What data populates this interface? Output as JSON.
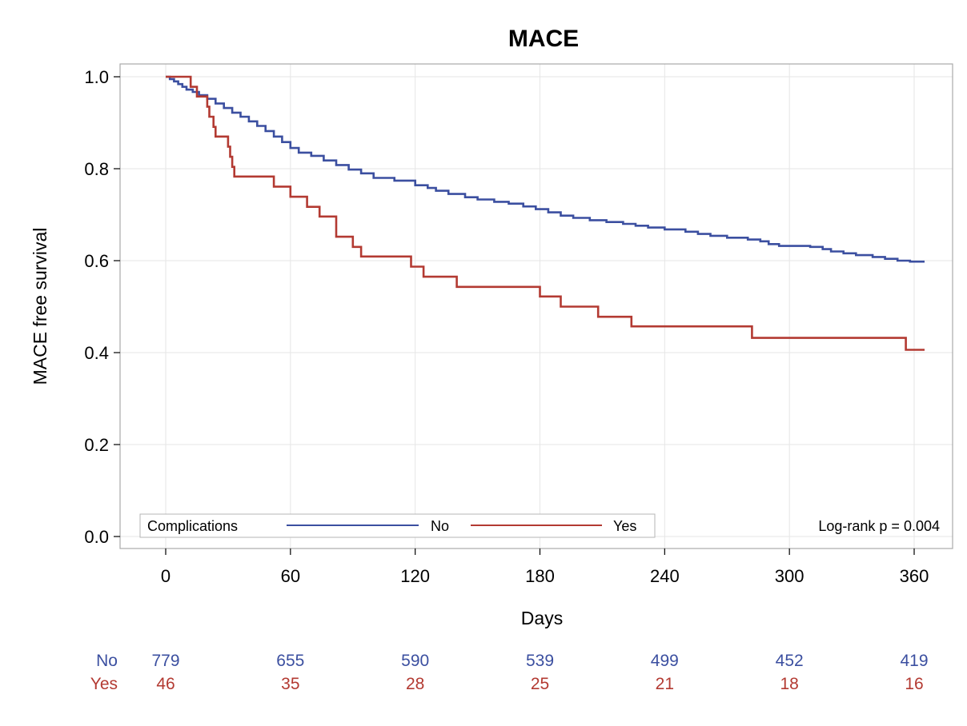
{
  "chart_data": {
    "type": "line",
    "subtype": "kaplan-meier",
    "title": "MACE",
    "xlabel": "Days",
    "ylabel": "MACE free survival",
    "xlim": [
      0,
      365
    ],
    "ylim": [
      0,
      1.0
    ],
    "x_ticks": [
      "0",
      "60",
      "120",
      "180",
      "240",
      "300",
      "360"
    ],
    "x_tick_values": [
      0,
      60,
      120,
      180,
      240,
      300,
      360
    ],
    "y_ticks": [
      "0.0",
      "0.2",
      "0.4",
      "0.6",
      "0.8",
      "1.0"
    ],
    "y_tick_values": [
      0,
      0.2,
      0.4,
      0.6,
      0.8,
      1.0
    ],
    "grid": true,
    "legend": {
      "title": "Complications",
      "placement": "bottom-left",
      "entries": [
        "No",
        "Yes"
      ]
    },
    "annotation": "Log-rank p = 0.004",
    "series": [
      {
        "name": "No",
        "color": "#3b4fa0",
        "steps": [
          [
            0,
            1.0
          ],
          [
            2,
            0.995
          ],
          [
            4,
            0.99
          ],
          [
            6,
            0.984
          ],
          [
            8,
            0.978
          ],
          [
            10,
            0.972
          ],
          [
            13,
            0.967
          ],
          [
            16,
            0.96
          ],
          [
            20,
            0.952
          ],
          [
            24,
            0.942
          ],
          [
            28,
            0.932
          ],
          [
            32,
            0.922
          ],
          [
            36,
            0.913
          ],
          [
            40,
            0.903
          ],
          [
            44,
            0.893
          ],
          [
            48,
            0.882
          ],
          [
            52,
            0.87
          ],
          [
            56,
            0.858
          ],
          [
            60,
            0.845
          ],
          [
            64,
            0.835
          ],
          [
            70,
            0.828
          ],
          [
            76,
            0.818
          ],
          [
            82,
            0.808
          ],
          [
            88,
            0.798
          ],
          [
            94,
            0.79
          ],
          [
            100,
            0.78
          ],
          [
            110,
            0.774
          ],
          [
            120,
            0.764
          ],
          [
            126,
            0.758
          ],
          [
            130,
            0.752
          ],
          [
            136,
            0.745
          ],
          [
            144,
            0.738
          ],
          [
            150,
            0.733
          ],
          [
            158,
            0.728
          ],
          [
            165,
            0.724
          ],
          [
            172,
            0.718
          ],
          [
            178,
            0.712
          ],
          [
            184,
            0.705
          ],
          [
            190,
            0.698
          ],
          [
            196,
            0.693
          ],
          [
            204,
            0.688
          ],
          [
            212,
            0.684
          ],
          [
            220,
            0.68
          ],
          [
            226,
            0.676
          ],
          [
            232,
            0.672
          ],
          [
            240,
            0.668
          ],
          [
            250,
            0.663
          ],
          [
            256,
            0.658
          ],
          [
            262,
            0.654
          ],
          [
            270,
            0.65
          ],
          [
            280,
            0.646
          ],
          [
            286,
            0.642
          ],
          [
            290,
            0.636
          ],
          [
            295,
            0.632
          ],
          [
            310,
            0.63
          ],
          [
            316,
            0.625
          ],
          [
            320,
            0.62
          ],
          [
            326,
            0.616
          ],
          [
            332,
            0.612
          ],
          [
            340,
            0.608
          ],
          [
            346,
            0.604
          ],
          [
            352,
            0.6
          ],
          [
            358,
            0.598
          ],
          [
            365,
            0.598
          ]
        ]
      },
      {
        "name": "Yes",
        "color": "#b33a32",
        "steps": [
          [
            0,
            1.0
          ],
          [
            12,
            0.978
          ],
          [
            15,
            0.957
          ],
          [
            20,
            0.935
          ],
          [
            21,
            0.913
          ],
          [
            23,
            0.891
          ],
          [
            24,
            0.87
          ],
          [
            30,
            0.848
          ],
          [
            31,
            0.826
          ],
          [
            32,
            0.804
          ],
          [
            33,
            0.783
          ],
          [
            52,
            0.761
          ],
          [
            60,
            0.739
          ],
          [
            68,
            0.717
          ],
          [
            74,
            0.696
          ],
          [
            82,
            0.652
          ],
          [
            90,
            0.63
          ],
          [
            94,
            0.609
          ],
          [
            118,
            0.587
          ],
          [
            124,
            0.565
          ],
          [
            140,
            0.543
          ],
          [
            180,
            0.522
          ],
          [
            190,
            0.5
          ],
          [
            208,
            0.478
          ],
          [
            224,
            0.457
          ],
          [
            248,
            0.457
          ],
          [
            282,
            0.432
          ],
          [
            356,
            0.406
          ],
          [
            365,
            0.406
          ]
        ]
      }
    ],
    "risk_table": {
      "rows": [
        {
          "label": "No",
          "color": "#3b4fa0",
          "values": [
            "779",
            "655",
            "590",
            "539",
            "499",
            "452",
            "419"
          ]
        },
        {
          "label": "Yes",
          "color": "#b33a32",
          "values": [
            "46",
            "35",
            "28",
            "25",
            "21",
            "18",
            "16"
          ]
        }
      ]
    }
  }
}
